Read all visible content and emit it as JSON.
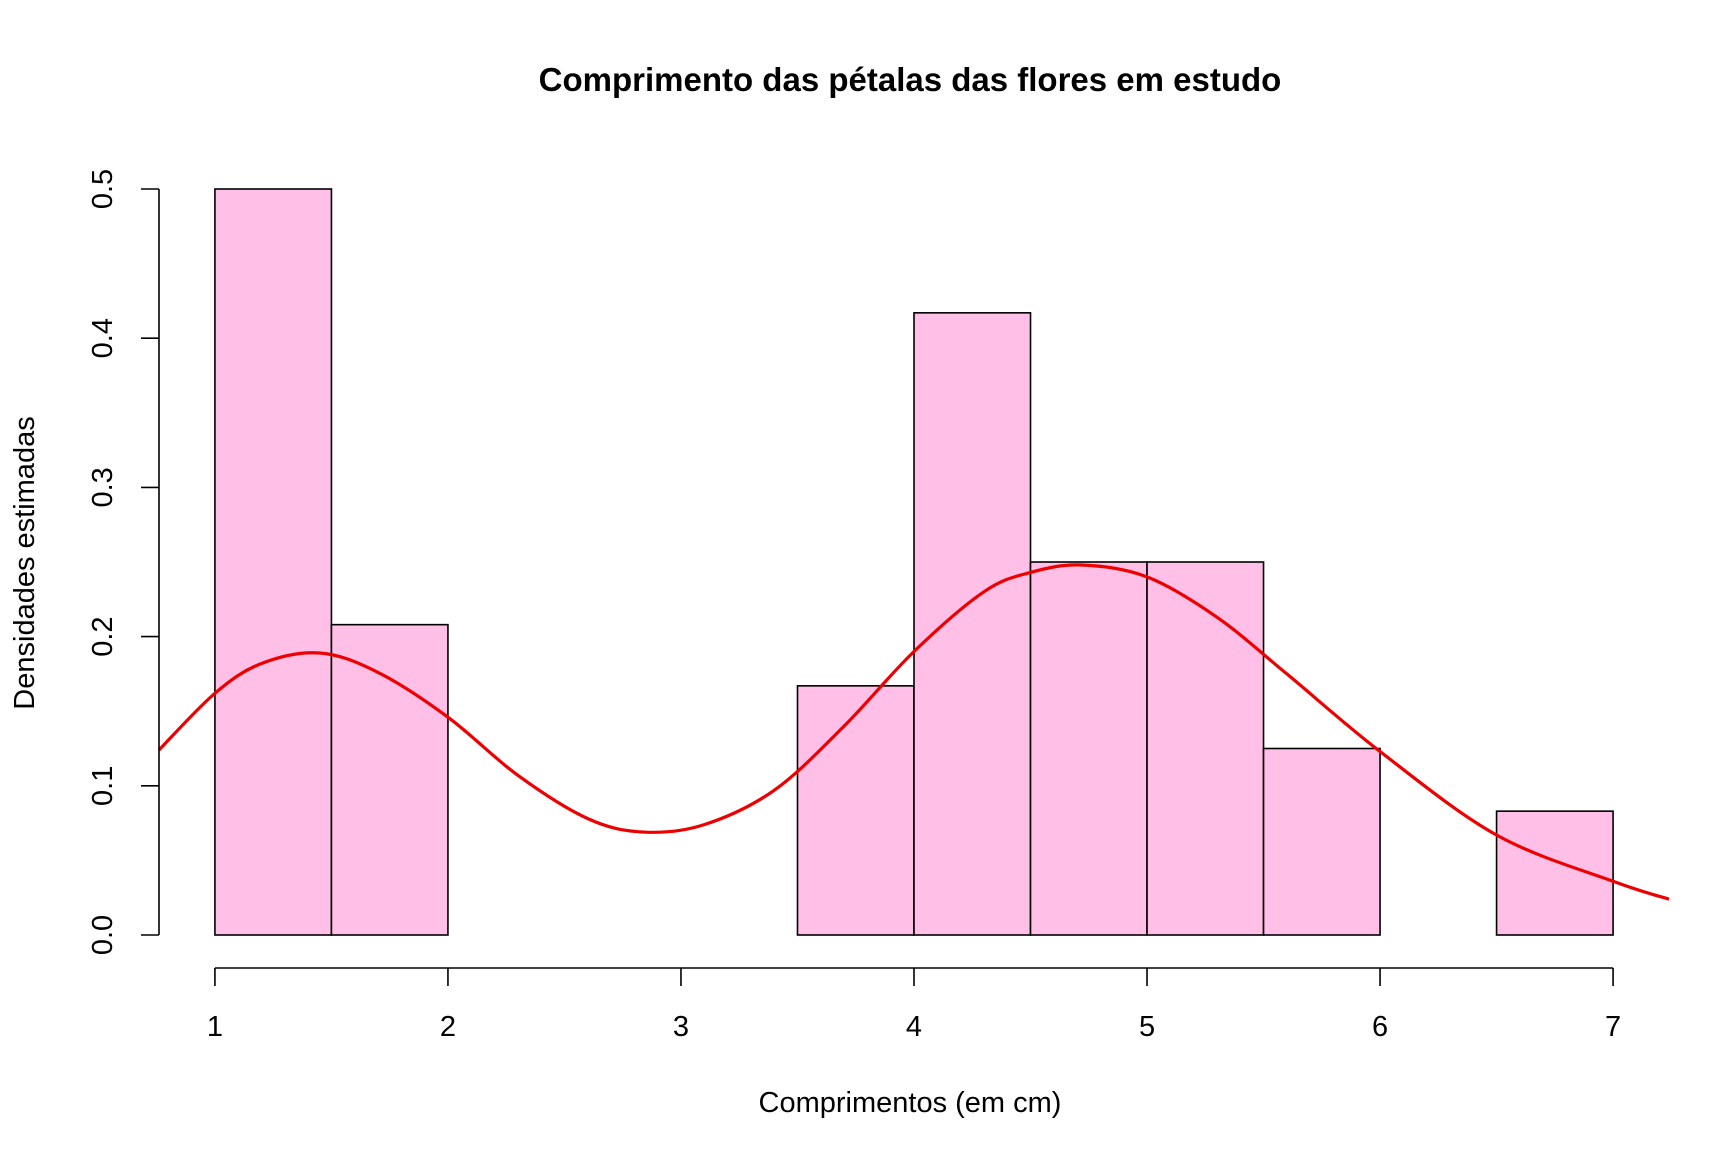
{
  "chart_data": {
    "type": "bar",
    "title": "Comprimento das pétalas das flores em estudo",
    "xlabel": "Comprimentos (em cm)",
    "ylabel": "Densidades estimadas",
    "xlim": [
      0.76,
      7.24
    ],
    "ylim": [
      0,
      0.5
    ],
    "x_ticks": [
      "1",
      "2",
      "3",
      "4",
      "5",
      "6",
      "7"
    ],
    "y_ticks": [
      "0.0",
      "0.1",
      "0.2",
      "0.3",
      "0.4",
      "0.5"
    ],
    "grid": false,
    "bar_color": "#FFBFE6",
    "bar_border_color": "#000000",
    "bins": [
      {
        "x0": 1.0,
        "x1": 1.5,
        "density": 0.5
      },
      {
        "x0": 1.5,
        "x1": 2.0,
        "density": 0.208
      },
      {
        "x0": 2.0,
        "x1": 2.5,
        "density": 0
      },
      {
        "x0": 2.5,
        "x1": 3.0,
        "density": 0
      },
      {
        "x0": 3.0,
        "x1": 3.5,
        "density": 0
      },
      {
        "x0": 3.5,
        "x1": 4.0,
        "density": 0.167
      },
      {
        "x0": 4.0,
        "x1": 4.5,
        "density": 0.417
      },
      {
        "x0": 4.5,
        "x1": 5.0,
        "density": 0.25
      },
      {
        "x0": 5.0,
        "x1": 5.5,
        "density": 0.25
      },
      {
        "x0": 5.5,
        "x1": 6.0,
        "density": 0.125
      },
      {
        "x0": 6.0,
        "x1": 6.5,
        "density": 0
      },
      {
        "x0": 6.5,
        "x1": 7.0,
        "density": 0.083
      }
    ],
    "density_curve": {
      "color": "#EE0000",
      "x": [
        0.76,
        1.0,
        1.2,
        1.45,
        1.7,
        2.0,
        2.3,
        2.6,
        2.84,
        3.1,
        3.4,
        3.7,
        4.0,
        4.3,
        4.5,
        4.72,
        5.0,
        5.3,
        5.6,
        6.0,
        6.5,
        7.0,
        7.24
      ],
      "y": [
        0.124,
        0.162,
        0.182,
        0.189,
        0.176,
        0.146,
        0.107,
        0.078,
        0.069,
        0.074,
        0.097,
        0.14,
        0.19,
        0.23,
        0.243,
        0.248,
        0.24,
        0.213,
        0.175,
        0.123,
        0.067,
        0.036,
        0.024
      ]
    }
  }
}
